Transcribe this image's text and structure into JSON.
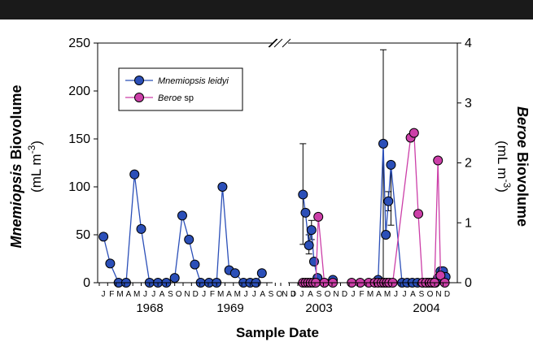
{
  "chart_data": {
    "type": "line",
    "xlabel": "Sample Date",
    "y_left_label": {
      "italic": "Mnemiopsis",
      "rest": " Biovolume",
      "unit": "(mL m",
      "sup": "-3",
      "close": ")"
    },
    "y_right_label": {
      "italic": "Beroe",
      "rest": " Biovolume",
      "unit": "(mL m",
      "sup": "-3",
      "close": ")"
    },
    "y_left_range": [
      0,
      250
    ],
    "y_left_ticks": [
      "0",
      "50",
      "100",
      "150",
      "200",
      "250"
    ],
    "y_right_range": [
      0,
      4
    ],
    "y_right_ticks": [
      "0",
      "1",
      "2",
      "3",
      "4"
    ],
    "month_ticks_left": [
      "J",
      "F",
      "M",
      "A",
      "M",
      "J",
      "J",
      "A",
      "S",
      "O",
      "N",
      "D",
      "J",
      "F",
      "M",
      "A",
      "M",
      "J",
      "J",
      "A",
      "S",
      "O",
      "N",
      "D"
    ],
    "month_ticks_right": [
      "J",
      "J",
      "A",
      "S",
      "O",
      "N",
      "D",
      "J",
      "F",
      "M",
      "A",
      "M",
      "J",
      "J",
      "A",
      "S",
      "O",
      "N",
      "D"
    ],
    "years": [
      "1968",
      "1969",
      "2003",
      "2004"
    ],
    "legend": [
      {
        "label": "Mnemiopsis leidyi",
        "italic": "Mnemiopsis leidyi",
        "color": "#2b4fb8"
      },
      {
        "label": "Beroe sp",
        "italic": "Beroe",
        "rest": " sp",
        "color": "#cc3fa8"
      }
    ],
    "series": [
      {
        "name": "Mnemiopsis leidyi",
        "axis": "left",
        "color": "#2b4fb8",
        "segments": [
          {
            "points": [
              [
                0.5,
                48
              ],
              [
                1.3,
                20
              ],
              [
                2.3,
                0
              ],
              [
                3.2,
                0
              ],
              [
                4.2,
                113
              ],
              [
                5.0,
                56
              ],
              [
                6.0,
                0
              ],
              [
                7.0,
                0
              ],
              [
                8.0,
                0
              ],
              [
                9.0,
                5
              ],
              [
                9.9,
                70
              ],
              [
                10.7,
                45
              ],
              [
                11.4,
                19
              ],
              [
                12.1,
                0
              ],
              [
                13.1,
                0
              ],
              [
                14.0,
                0
              ],
              [
                14.7,
                100
              ],
              [
                15.5,
                13
              ],
              [
                16.2,
                10
              ],
              [
                17.2,
                0
              ],
              [
                18.0,
                0
              ],
              [
                18.7,
                0
              ],
              [
                19.4,
                10
              ]
            ]
          },
          {
            "points": [
              [
                24.6,
                92
              ],
              [
                24.9,
                73
              ],
              [
                25.3,
                39
              ],
              [
                25.6,
                55
              ],
              [
                25.9,
                22
              ],
              [
                26.3,
                5
              ],
              [
                27.1,
                0
              ],
              [
                28.1,
                3
              ]
            ]
          },
          {
            "points": [
              [
                33.4,
                3
              ],
              [
                34.0,
                145
              ],
              [
                34.3,
                50
              ],
              [
                34.6,
                85
              ],
              [
                34.9,
                123
              ],
              [
                36.2,
                0
              ],
              [
                36.8,
                0
              ],
              [
                37.4,
                0
              ],
              [
                38.0,
                0
              ],
              [
                38.6,
                0
              ],
              [
                39.2,
                0
              ],
              [
                39.8,
                0
              ],
              [
                40.1,
                0
              ],
              [
                40.4,
                5
              ],
              [
                40.7,
                12
              ],
              [
                41.0,
                12
              ],
              [
                41.3,
                6
              ]
            ]
          }
        ],
        "error_bars": [
          [
            24.6,
            40,
            145
          ],
          [
            25.3,
            30,
            50
          ],
          [
            25.6,
            45,
            65
          ],
          [
            34.0,
            0,
            243
          ],
          [
            34.6,
            75,
            95
          ],
          [
            34.9,
            60,
            123
          ]
        ]
      },
      {
        "name": "Beroe sp",
        "axis": "right",
        "color": "#cc3fa8",
        "segments": [
          {
            "points": [
              [
                24.6,
                0
              ],
              [
                24.9,
                0
              ],
              [
                25.2,
                0
              ],
              [
                25.5,
                0
              ],
              [
                25.8,
                0
              ],
              [
                26.1,
                0
              ],
              [
                26.4,
                1.1
              ],
              [
                27.1,
                0
              ],
              [
                28.1,
                0
              ]
            ]
          },
          {
            "points": [
              [
                30.3,
                0
              ],
              [
                31.3,
                0
              ],
              [
                32.3,
                0
              ],
              [
                33.0,
                0
              ],
              [
                33.4,
                0
              ],
              [
                33.8,
                0
              ],
              [
                34.1,
                0
              ],
              [
                34.4,
                0
              ],
              [
                34.7,
                0
              ],
              [
                35.1,
                0
              ],
              [
                37.2,
                2.42
              ],
              [
                37.6,
                2.5
              ],
              [
                38.1,
                1.15
              ],
              [
                38.6,
                0
              ],
              [
                39.0,
                0
              ],
              [
                39.4,
                0
              ],
              [
                39.7,
                0
              ],
              [
                40.0,
                0
              ],
              [
                40.4,
                2.04
              ],
              [
                40.7,
                0.12
              ],
              [
                41.2,
                0
              ]
            ]
          }
        ]
      }
    ],
    "grid": false,
    "legend_position": "top-left"
  }
}
